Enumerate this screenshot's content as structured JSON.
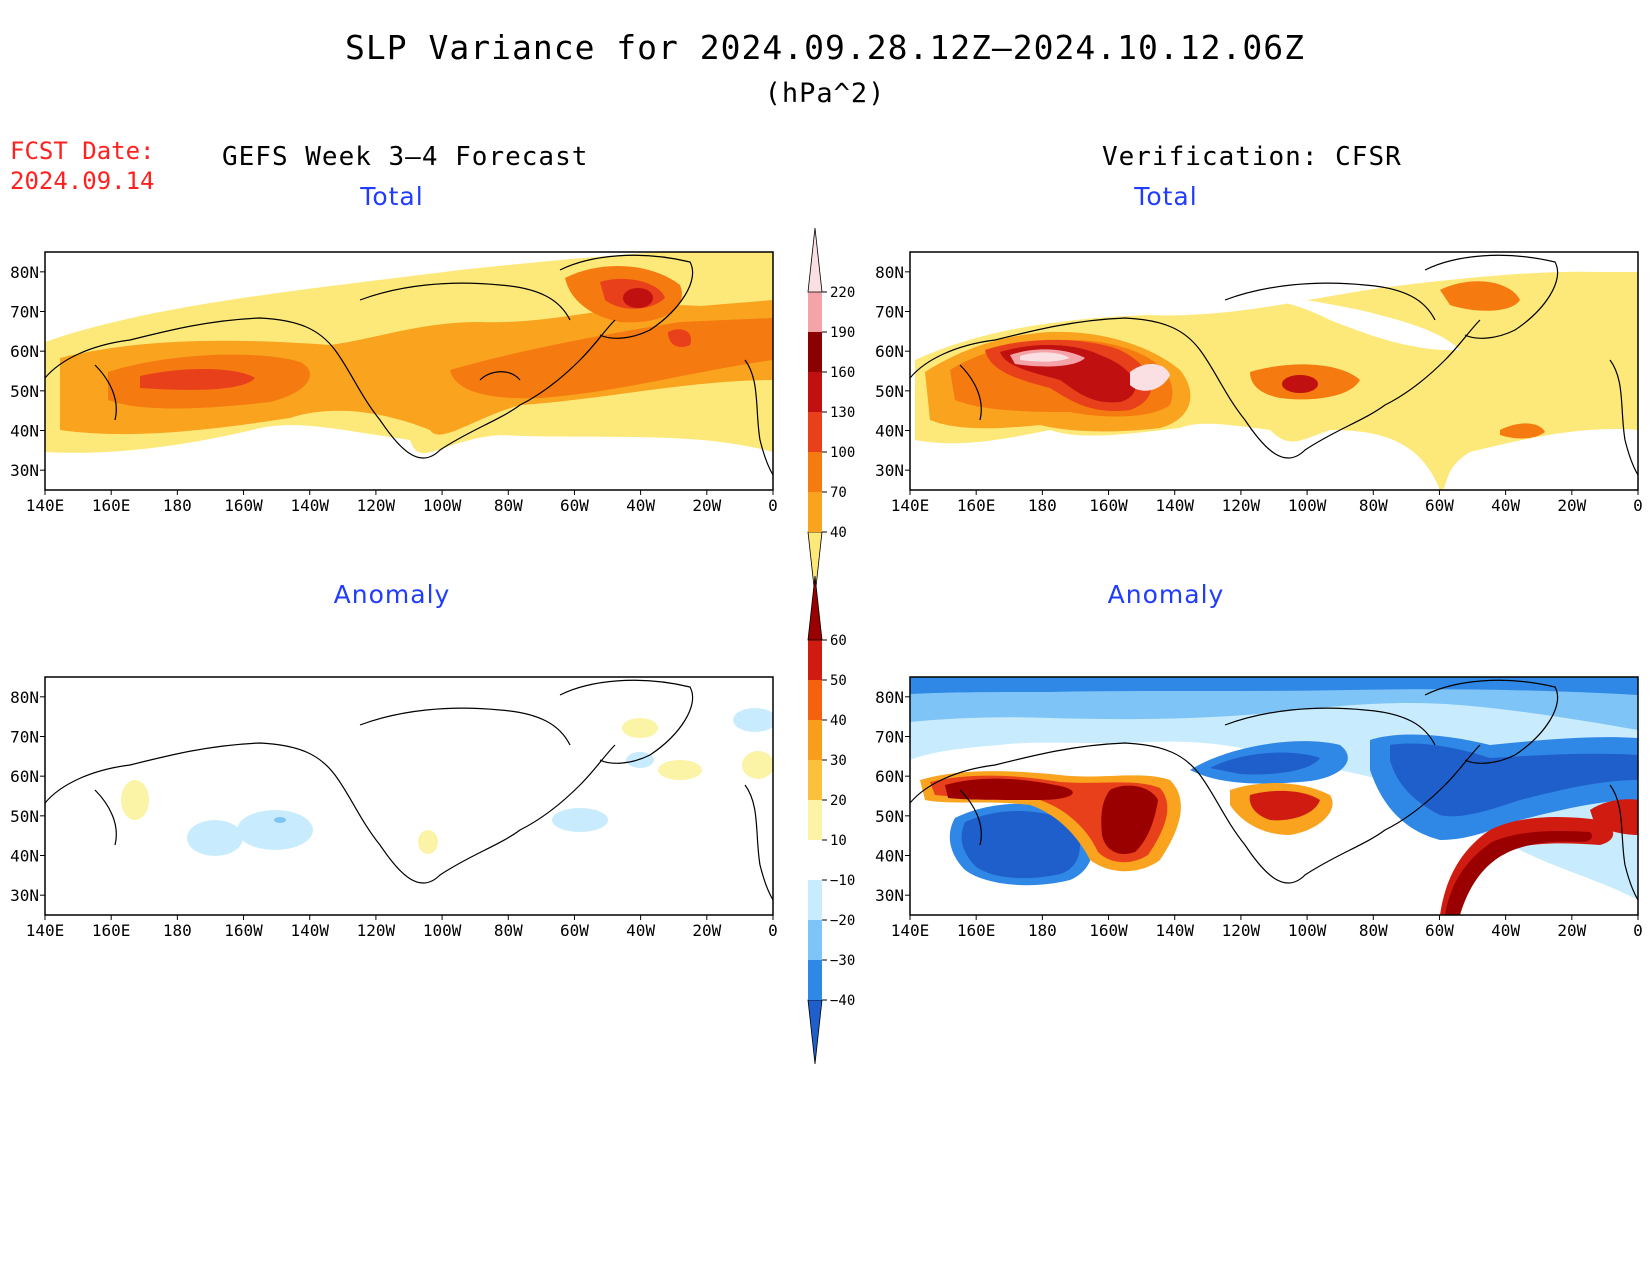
{
  "title": "SLP Variance for 2024.09.28.12Z–2024.10.12.06Z",
  "units": "(hPa^2)",
  "fcst_label": "FCST Date:",
  "fcst_date": "2024.09.14",
  "left_heading": "GEFS Week 3–4 Forecast",
  "right_heading": "Verification: CFSR",
  "panels": [
    {
      "id": "fc-total",
      "title": "Total",
      "row": 0,
      "col": 0
    },
    {
      "id": "ver-total",
      "title": "Total",
      "row": 0,
      "col": 1
    },
    {
      "id": "fc-anom",
      "title": "Anomaly",
      "row": 1,
      "col": 0
    },
    {
      "id": "ver-anom",
      "title": "Anomaly",
      "row": 1,
      "col": 1
    }
  ],
  "axes": {
    "lon_labels": [
      "140E",
      "160E",
      "180",
      "160W",
      "140W",
      "120W",
      "100W",
      "80W",
      "60W",
      "40W",
      "20W",
      "0"
    ],
    "lat_labels": [
      "80N",
      "70N",
      "60N",
      "50N",
      "40N",
      "30N"
    ],
    "lon_range": [
      "140E",
      "0"
    ],
    "lat_range": [
      25,
      85
    ]
  },
  "colorbars": {
    "total": {
      "levels": [
        "40",
        "70",
        "100",
        "130",
        "160",
        "190",
        "220"
      ],
      "colors": [
        "#fde97a",
        "#f9a31e",
        "#f57a10",
        "#e8401a",
        "#c01010",
        "#8b0000",
        "#f4a3a8",
        "#fbe0e3"
      ]
    },
    "anomaly": {
      "levels": [
        "−40",
        "−30",
        "−20",
        "−10",
        "10",
        "20",
        "30",
        "40",
        "50",
        "60"
      ],
      "colors": [
        "#1f5fcb",
        "#2f88e6",
        "#7fc4f6",
        "#c8ecfd",
        "#ffffff",
        "#fbf3a6",
        "#fcc13c",
        "#f99d1c",
        "#f5620f",
        "#d01c10",
        "#9b0000"
      ]
    }
  }
}
